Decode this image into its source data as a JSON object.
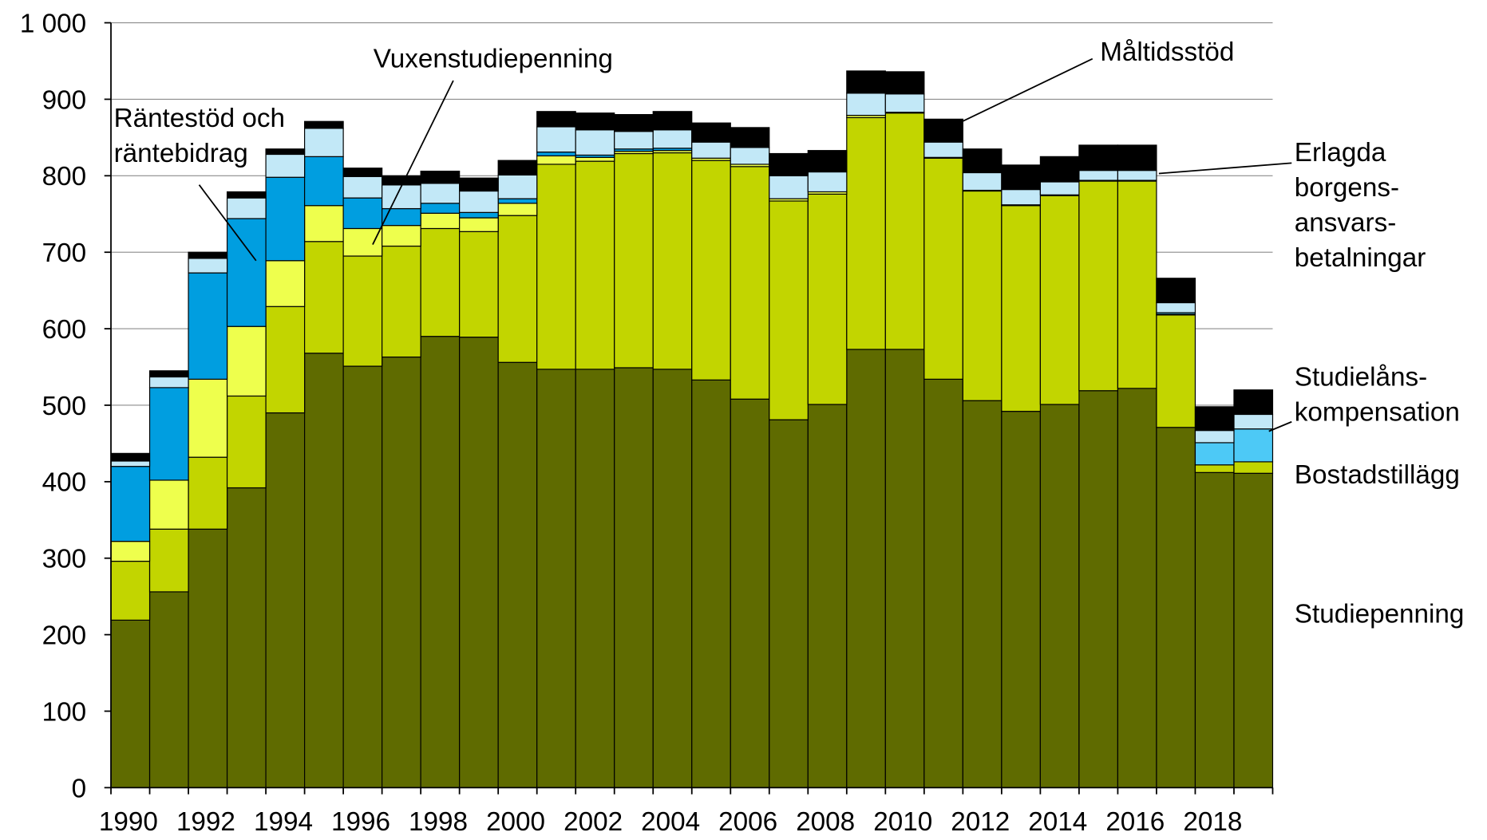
{
  "chart_data": {
    "type": "stacked-bar",
    "categories": [
      "1990",
      null,
      "1992",
      null,
      "1994",
      null,
      "1996",
      null,
      "1998",
      null,
      "2000",
      null,
      "2002",
      null,
      "2004",
      null,
      "2006",
      null,
      "2008",
      null,
      "2010",
      null,
      "2012",
      null,
      "2014",
      null,
      "2016",
      null,
      "2018",
      null
    ],
    "ylim": [
      0,
      1000
    ],
    "yticks": [
      0,
      100,
      200,
      300,
      400,
      500,
      600,
      700,
      800,
      900,
      {
        "value": 1000,
        "label": "1 000"
      }
    ],
    "grid": true,
    "series": [
      {
        "name": "Studiepenning",
        "color": "#5f6b00",
        "values": [
          219,
          256,
          338,
          392,
          490,
          568,
          551,
          563,
          590,
          589,
          556,
          547,
          547,
          549,
          547,
          533,
          508,
          481,
          501,
          573,
          573,
          534,
          506,
          492,
          501,
          519,
          522,
          471,
          412,
          411
        ]
      },
      {
        "name": "Bostadstillägg",
        "color": "#c2d500",
        "values": [
          77,
          82,
          94,
          120,
          139,
          146,
          144,
          145,
          141,
          138,
          192,
          268,
          272,
          280,
          283,
          287,
          304,
          286,
          275,
          303,
          309,
          289,
          274,
          269,
          273,
          274,
          271,
          147,
          10,
          15
        ]
      },
      {
        "name": "Vuxenstudiepenning",
        "color": "#eeff4d",
        "values": [
          26,
          64,
          102,
          91,
          60,
          47,
          36,
          27,
          20,
          18,
          16,
          11,
          5,
          3,
          3,
          3,
          3,
          3,
          3,
          3,
          1,
          1,
          1,
          1,
          1,
          1,
          1,
          1,
          0,
          0
        ]
      },
      {
        "name": "Räntestöd och\nräntebidrag",
        "color": "#009ee0",
        "values": [
          98,
          121,
          139,
          141,
          109,
          64,
          40,
          22,
          13,
          7,
          6,
          5,
          3,
          3,
          3,
          0,
          0,
          0,
          0,
          0,
          0,
          0,
          0,
          0,
          0,
          0,
          0,
          0,
          0,
          0
        ]
      },
      {
        "name": "Studielåns-\nkompensation",
        "color": "#4dc9f6",
        "values": [
          0,
          0,
          0,
          0,
          0,
          0,
          0,
          0,
          0,
          0,
          0,
          0,
          0,
          0,
          0,
          0,
          0,
          0,
          0,
          0,
          0,
          0,
          0,
          0,
          0,
          0,
          0,
          2,
          29,
          43
        ]
      },
      {
        "name": "Erlagda\nborgens-\nansvars-\nbetalningar",
        "color": "#c2e8f7",
        "values": [
          7,
          14,
          19,
          27,
          30,
          37,
          28,
          31,
          26,
          28,
          31,
          33,
          33,
          23,
          24,
          21,
          22,
          30,
          26,
          29,
          24,
          20,
          23,
          20,
          17,
          13,
          13,
          13,
          16,
          19
        ]
      },
      {
        "name": "Måltidsstöd",
        "color": "#000000",
        "values": [
          10,
          8,
          8,
          8,
          7,
          9,
          11,
          12,
          16,
          17,
          19,
          20,
          22,
          22,
          24,
          25,
          26,
          29,
          28,
          29,
          29,
          30,
          31,
          32,
          33,
          33,
          33,
          32,
          31,
          32
        ]
      }
    ]
  }
}
